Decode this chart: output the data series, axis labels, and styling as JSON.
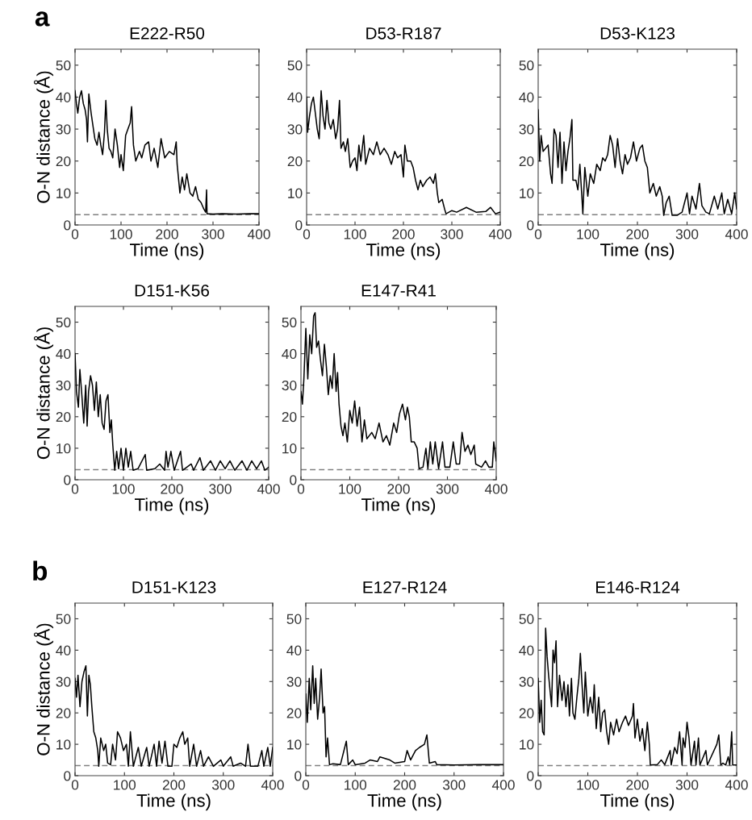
{
  "chart_data": [
    {
      "type": "line",
      "title": "E222-R50",
      "xlabel": "Time (ns)",
      "ylabel": "O-N distance (Å)",
      "annotations": [
        "a"
      ],
      "xlim": [
        0,
        400
      ],
      "ylim": [
        0,
        55
      ],
      "xticks": [
        0,
        100,
        200,
        300,
        400
      ],
      "yticks": [
        0,
        10,
        20,
        30,
        40,
        50
      ],
      "grid": false,
      "ref_lines": [
        {
          "axis": "y",
          "value": 3.2,
          "color": "#808080",
          "line_style": "dashed"
        }
      ],
      "series": [
        {
          "color": "#000000",
          "x": [
            0,
            3,
            6,
            10,
            14,
            18,
            22,
            25,
            27,
            30,
            35,
            40,
            43,
            48,
            52,
            56,
            60,
            64,
            67,
            70,
            74,
            78,
            82,
            87,
            92,
            97,
            100,
            105,
            110,
            115,
            120,
            123,
            127,
            132,
            140,
            145,
            152,
            160,
            165,
            172,
            180,
            187,
            195,
            205,
            215,
            220,
            222,
            228,
            233,
            238,
            243,
            250,
            256,
            262,
            268,
            274,
            280,
            284,
            286,
            287,
            300,
            320,
            350,
            380,
            400
          ],
          "values": [
            42,
            38,
            35,
            40,
            42,
            38,
            36,
            33,
            26,
            41,
            35,
            30,
            27,
            25,
            29,
            25,
            22,
            29,
            39,
            30,
            24,
            23,
            21,
            30,
            25,
            18,
            22,
            17,
            28,
            30,
            32,
            37,
            25,
            20,
            23,
            21,
            25,
            26,
            20,
            24,
            18,
            27,
            21,
            23,
            22,
            26,
            19,
            10,
            15,
            11,
            16,
            10,
            9,
            12,
            8,
            7,
            5,
            4,
            11,
            3.5,
            3.4,
            3.5,
            3.4,
            3.5,
            3.5
          ]
        }
      ]
    },
    {
      "type": "line",
      "title": "D53-R187",
      "xlabel": "Time (ns)",
      "xlim": [
        0,
        400
      ],
      "ylim": [
        0,
        55
      ],
      "xticks": [
        0,
        100,
        200,
        300,
        400
      ],
      "yticks": [
        0,
        10,
        20,
        30,
        40,
        50
      ],
      "grid": false,
      "ref_lines": [
        {
          "axis": "y",
          "value": 3.2,
          "color": "#808080",
          "line_style": "dashed"
        }
      ],
      "series": [
        {
          "color": "#000000",
          "x": [
            0,
            2,
            6,
            10,
            14,
            18,
            22,
            26,
            30,
            34,
            38,
            42,
            46,
            50,
            55,
            60,
            64,
            68,
            71,
            76,
            80,
            85,
            90,
            95,
            100,
            104,
            108,
            112,
            118,
            122,
            130,
            138,
            145,
            152,
            160,
            168,
            175,
            182,
            188,
            195,
            200,
            203,
            208,
            215,
            220,
            225,
            230,
            235,
            240,
            248,
            255,
            262,
            266,
            270,
            273,
            280,
            285,
            288,
            300,
            310,
            330,
            350,
            370,
            380,
            390,
            400
          ],
          "values": [
            40,
            29,
            34,
            38,
            40,
            35,
            30,
            27,
            42,
            34,
            30,
            39,
            32,
            30,
            33,
            27,
            30,
            39,
            24,
            26,
            23,
            27,
            18,
            20,
            21,
            17,
            25,
            20,
            28,
            19,
            24,
            22,
            26,
            22,
            24,
            22,
            19,
            23,
            21,
            22,
            15,
            25,
            20,
            20,
            18,
            14,
            11,
            14,
            12,
            14,
            15,
            13,
            16,
            10,
            7,
            8,
            5,
            3.5,
            4.5,
            4,
            5.5,
            4,
            4.2,
            5.5,
            3.5,
            4
          ]
        }
      ]
    },
    {
      "type": "line",
      "title": "D53-K123",
      "xlabel": "Time (ns)",
      "xlim": [
        0,
        400
      ],
      "ylim": [
        0,
        55
      ],
      "xticks": [
        0,
        100,
        200,
        300,
        400
      ],
      "yticks": [
        0,
        10,
        20,
        30,
        40,
        50
      ],
      "grid": false,
      "ref_lines": [
        {
          "axis": "y",
          "value": 3.2,
          "color": "#808080",
          "line_style": "dashed"
        }
      ],
      "series": [
        {
          "color": "#000000",
          "x": [
            0,
            3,
            6,
            10,
            15,
            20,
            25,
            28,
            32,
            36,
            40,
            44,
            48,
            52,
            56,
            60,
            64,
            68,
            70,
            76,
            80,
            84,
            88,
            90,
            94,
            100,
            105,
            112,
            118,
            125,
            130,
            135,
            140,
            145,
            150,
            155,
            160,
            165,
            170,
            175,
            180,
            186,
            192,
            198,
            205,
            210,
            215,
            220,
            225,
            232,
            238,
            245,
            250,
            253,
            258,
            264,
            270,
            280,
            290,
            295,
            300,
            305,
            310,
            318,
            325,
            330,
            338,
            345,
            355,
            362,
            370,
            375,
            382,
            390,
            396,
            400
          ],
          "values": [
            36,
            20,
            28,
            23,
            24,
            25,
            16,
            13,
            30,
            28,
            18,
            29,
            13,
            26,
            17,
            23,
            27,
            33,
            14,
            14,
            11,
            19,
            9,
            3.5,
            18,
            9,
            16,
            13,
            19,
            17,
            21,
            20,
            22,
            28,
            25,
            18,
            27,
            20,
            16,
            22,
            19,
            21,
            26,
            20,
            24,
            25,
            20,
            18,
            10,
            13,
            9,
            12,
            9,
            3,
            7,
            9,
            3,
            3,
            4,
            7,
            10,
            3.5,
            9,
            5,
            13,
            6,
            4,
            3.5,
            9,
            5,
            10,
            3.5,
            8,
            3.5,
            10,
            5
          ]
        }
      ]
    },
    {
      "type": "line",
      "title": "D151-K56",
      "xlabel": "Time (ns)",
      "ylabel": "O-N distance (Å)",
      "xlim": [
        0,
        400
      ],
      "ylim": [
        0,
        55
      ],
      "xticks": [
        0,
        100,
        200,
        300,
        400
      ],
      "yticks": [
        0,
        10,
        20,
        30,
        40,
        50
      ],
      "grid": false,
      "ref_lines": [
        {
          "axis": "y",
          "value": 3.2,
          "color": "#808080",
          "line_style": "dashed"
        }
      ],
      "series": [
        {
          "color": "#000000",
          "x": [
            0,
            3,
            7,
            10,
            14,
            18,
            22,
            25,
            28,
            32,
            36,
            40,
            44,
            48,
            52,
            56,
            60,
            64,
            68,
            72,
            75,
            78,
            82,
            86,
            90,
            95,
            100,
            105,
            110,
            115,
            120,
            130,
            145,
            148,
            165,
            175,
            185,
            188,
            192,
            198,
            205,
            218,
            222,
            240,
            245,
            258,
            265,
            280,
            290,
            300,
            310,
            320,
            330,
            345,
            355,
            365,
            375,
            385,
            392,
            400
          ],
          "values": [
            40,
            28,
            23,
            35,
            27,
            18,
            30,
            17,
            28,
            33,
            30,
            22,
            31,
            20,
            27,
            18,
            16,
            25,
            27,
            15,
            19,
            11,
            3,
            9,
            3.5,
            10,
            3,
            10,
            4,
            9,
            3,
            3.5,
            8,
            3,
            3.5,
            5,
            3,
            9,
            4,
            9,
            3,
            9,
            3,
            5,
            3,
            7,
            3,
            6,
            3,
            6,
            3.5,
            6,
            3,
            6,
            3,
            6,
            3.5,
            6,
            3,
            4
          ]
        }
      ]
    },
    {
      "type": "line",
      "title": "E147-R41",
      "xlabel": "Time (ns)",
      "xlim": [
        0,
        400
      ],
      "ylim": [
        0,
        55
      ],
      "xticks": [
        0,
        100,
        200,
        300,
        400
      ],
      "yticks": [
        0,
        10,
        20,
        30,
        40,
        50
      ],
      "grid": false,
      "ref_lines": [
        {
          "axis": "y",
          "value": 3.2,
          "color": "#808080",
          "line_style": "dashed"
        }
      ],
      "series": [
        {
          "color": "#000000",
          "x": [
            0,
            3,
            6,
            10,
            14,
            18,
            22,
            26,
            29,
            32,
            36,
            40,
            44,
            48,
            52,
            56,
            60,
            64,
            68,
            72,
            75,
            78,
            82,
            86,
            90,
            95,
            100,
            105,
            110,
            115,
            120,
            125,
            130,
            135,
            145,
            152,
            160,
            168,
            175,
            182,
            190,
            196,
            202,
            208,
            214,
            218,
            222,
            226,
            232,
            238,
            242,
            250,
            256,
            260,
            265,
            270,
            275,
            282,
            290,
            295,
            305,
            312,
            318,
            325,
            330,
            336,
            342,
            348,
            355,
            358,
            370,
            378,
            385,
            392,
            395,
            400
          ],
          "values": [
            28,
            24,
            32,
            48,
            32,
            46,
            40,
            52,
            53,
            42,
            44,
            38,
            33,
            43,
            36,
            27,
            33,
            29,
            40,
            28,
            34,
            24,
            17,
            14,
            18,
            12,
            22,
            18,
            25,
            17,
            23,
            12,
            19,
            13,
            15,
            13,
            18,
            12,
            14,
            11,
            18,
            15,
            21,
            24,
            19,
            23,
            20,
            12,
            12,
            10,
            3.5,
            4,
            10,
            3.5,
            12,
            5,
            12,
            3.5,
            12,
            4,
            4,
            12,
            5,
            5,
            15,
            9,
            11,
            8,
            11,
            5,
            4,
            6,
            4,
            4,
            12,
            6
          ]
        }
      ]
    },
    {
      "type": "line",
      "title": "D151-K123",
      "xlabel": "Time (ns)",
      "ylabel": "O-N distance (Å)",
      "annotations": [
        "b"
      ],
      "xlim": [
        0,
        400
      ],
      "ylim": [
        0,
        55
      ],
      "xticks": [
        0,
        100,
        200,
        300,
        400
      ],
      "yticks": [
        0,
        10,
        20,
        30,
        40,
        50
      ],
      "grid": false,
      "ref_lines": [
        {
          "axis": "y",
          "value": 3.2,
          "color": "#808080",
          "line_style": "dashed"
        }
      ],
      "series": [
        {
          "color": "#000000",
          "x": [
            0,
            3,
            6,
            10,
            14,
            18,
            22,
            25,
            28,
            31,
            34,
            38,
            42,
            46,
            48,
            52,
            58,
            62,
            66,
            72,
            76,
            82,
            86,
            92,
            98,
            104,
            108,
            112,
            118,
            128,
            134,
            145,
            150,
            160,
            165,
            170,
            176,
            182,
            188,
            196,
            200,
            206,
            212,
            218,
            222,
            228,
            232,
            240,
            246,
            254,
            260,
            270,
            280,
            295,
            300,
            315,
            320,
            335,
            345,
            350,
            355,
            370,
            378,
            382,
            390,
            395,
            400
          ],
          "values": [
            31,
            25,
            32,
            22,
            30,
            33,
            35,
            19,
            32,
            29,
            22,
            14,
            12,
            8,
            3,
            12,
            8,
            10,
            4,
            3.5,
            10,
            5,
            14,
            12,
            8,
            10,
            3,
            14,
            3,
            9,
            3,
            9,
            3,
            10,
            3,
            11,
            4,
            11,
            3,
            3,
            10,
            9,
            12,
            14,
            10,
            12,
            3,
            10,
            3,
            8,
            3,
            6,
            3,
            5,
            3,
            6,
            3,
            4,
            3,
            10,
            3,
            3,
            8,
            3,
            9,
            3,
            9
          ]
        }
      ]
    },
    {
      "type": "line",
      "title": "E127-R124",
      "xlabel": "Time (ns)",
      "xlim": [
        0,
        400
      ],
      "ylim": [
        0,
        55
      ],
      "xticks": [
        0,
        100,
        200,
        300,
        400
      ],
      "yticks": [
        0,
        10,
        20,
        30,
        40,
        50
      ],
      "grid": false,
      "ref_lines": [
        {
          "axis": "y",
          "value": 3.2,
          "color": "#808080",
          "line_style": "dashed"
        }
      ],
      "series": [
        {
          "color": "#000000",
          "x": [
            0,
            3,
            7,
            10,
            14,
            17,
            20,
            24,
            28,
            31,
            35,
            38,
            41,
            44,
            48,
            55,
            70,
            82,
            86,
            95,
            100,
            120,
            130,
            145,
            150,
            170,
            180,
            200,
            205,
            212,
            222,
            230,
            240,
            245,
            250,
            262,
            265,
            300,
            350,
            400
          ],
          "values": [
            26,
            17,
            31,
            21,
            35,
            23,
            31,
            18,
            25,
            34,
            20,
            22,
            6,
            12,
            3.5,
            3.8,
            3.5,
            11,
            3.5,
            5,
            3.5,
            4,
            5,
            4.5,
            6,
            5,
            4,
            4.5,
            8,
            5,
            8,
            9,
            10,
            13,
            4,
            4.5,
            3.5,
            3.4,
            3.5,
            3.5
          ]
        }
      ]
    },
    {
      "type": "line",
      "title": "E146-R124",
      "xlabel": "Time (ns)",
      "xlim": [
        0,
        400
      ],
      "ylim": [
        0,
        55
      ],
      "xticks": [
        0,
        100,
        200,
        300,
        400
      ],
      "yticks": [
        0,
        10,
        20,
        30,
        40,
        50
      ],
      "grid": false,
      "ref_lines": [
        {
          "axis": "y",
          "value": 3.2,
          "color": "#808080",
          "line_style": "dashed"
        }
      ],
      "series": [
        {
          "color": "#000000",
          "x": [
            0,
            3,
            6,
            9,
            12,
            15,
            18,
            21,
            24,
            27,
            30,
            33,
            36,
            39,
            43,
            48,
            52,
            56,
            60,
            63,
            67,
            70,
            74,
            78,
            82,
            85,
            88,
            92,
            95,
            100,
            105,
            110,
            113,
            117,
            122,
            126,
            130,
            134,
            138,
            142,
            146,
            152,
            158,
            163,
            170,
            176,
            182,
            190,
            192,
            195,
            200,
            205,
            210,
            215,
            220,
            224,
            226,
            240,
            248,
            255,
            266,
            268,
            275,
            280,
            285,
            290,
            292,
            296,
            300,
            304,
            308,
            315,
            318,
            323,
            326,
            338,
            341,
            360,
            364,
            368,
            372,
            378,
            383,
            386,
            390,
            392,
            400
          ],
          "values": [
            31,
            17,
            24,
            14,
            13,
            47,
            38,
            32,
            27,
            22,
            40,
            36,
            43,
            22,
            32,
            24,
            30,
            22,
            29,
            19,
            31,
            20,
            18,
            25,
            31,
            39,
            30,
            20,
            33,
            19,
            25,
            20,
            29,
            15,
            25,
            14,
            20,
            21,
            14,
            10,
            17,
            13,
            18,
            14,
            17,
            19,
            16,
            19,
            23,
            12,
            18,
            11,
            15,
            8,
            17,
            10,
            3.4,
            3.5,
            5,
            3.5,
            8,
            3.4,
            9,
            7,
            14,
            3.4,
            12,
            9,
            17,
            12,
            3.4,
            11,
            3.4,
            12,
            3.4,
            8,
            3.4,
            10,
            13,
            3.4,
            4,
            3.4,
            6,
            3.4,
            14,
            3.4,
            3.4
          ]
        }
      ]
    }
  ]
}
